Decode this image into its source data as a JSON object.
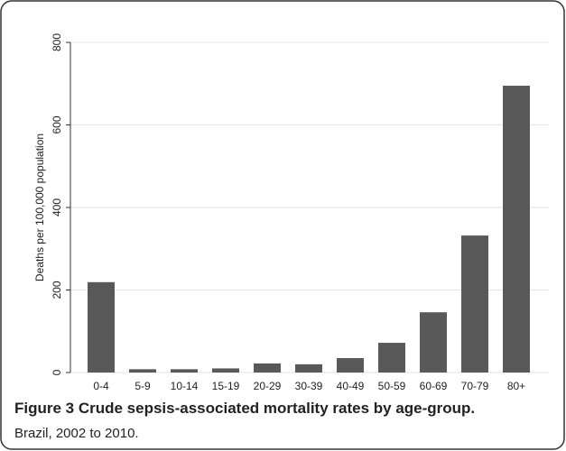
{
  "chart_data": {
    "type": "bar",
    "y_label": "Deaths per 100,000 population",
    "categories": [
      "0-4",
      "5-9",
      "10-14",
      "15-19",
      "20-29",
      "30-39",
      "40-49",
      "50-59",
      "60-69",
      "70-79",
      "80+"
    ],
    "values": [
      219,
      8,
      8,
      10,
      22,
      20,
      35,
      72,
      146,
      332,
      695
    ],
    "color": "#595959",
    "ylim": [
      0,
      800
    ],
    "yticks": [
      0,
      200,
      400,
      600,
      800
    ],
    "grid": true
  },
  "caption": {
    "title": "Figure 3 Crude sepsis-associated mortality rates by age-group.",
    "text": "Brazil, 2002 to 2010."
  }
}
